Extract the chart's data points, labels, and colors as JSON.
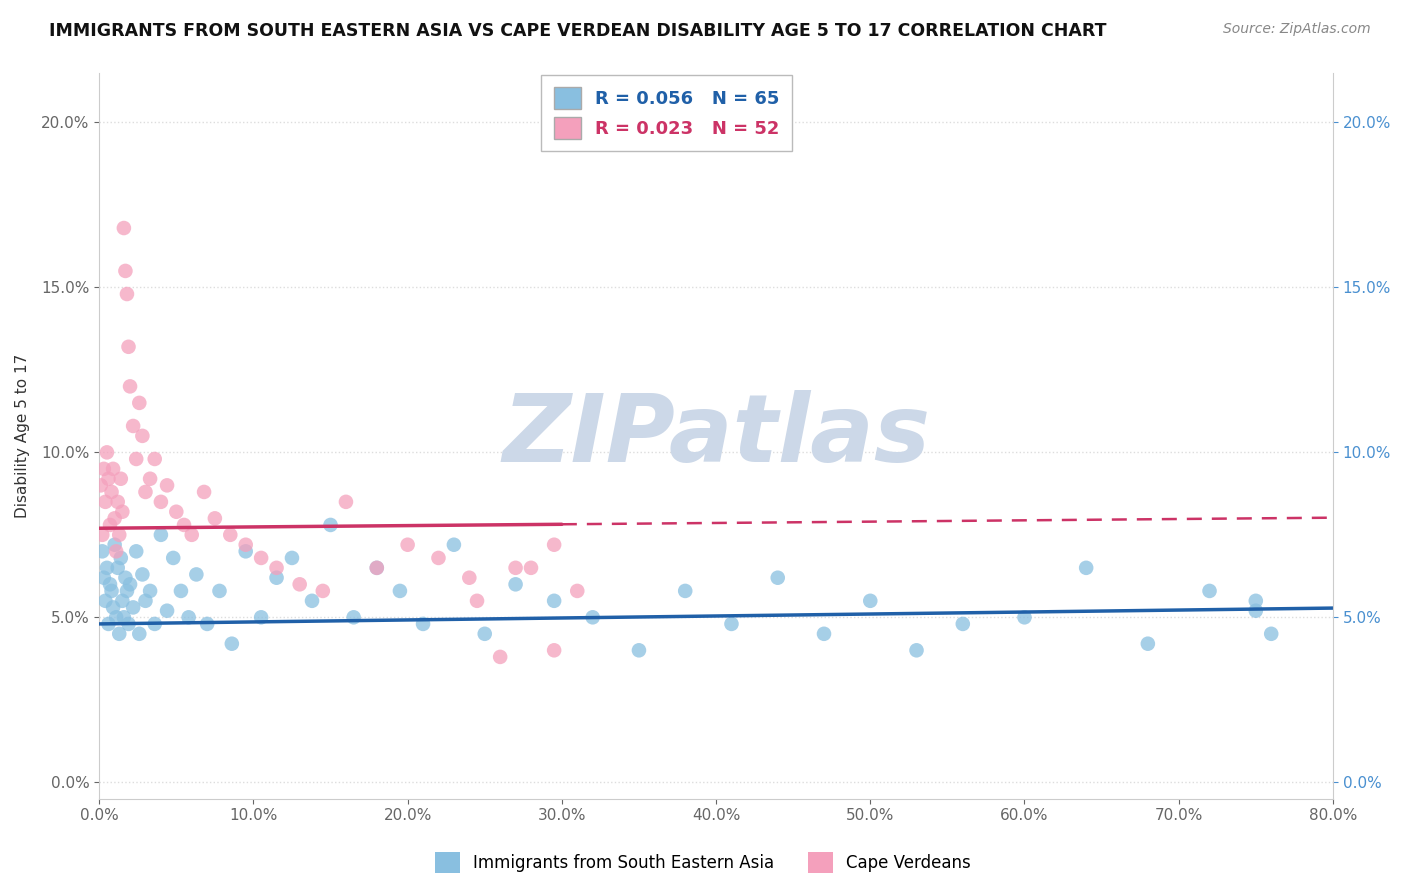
{
  "title": "IMMIGRANTS FROM SOUTH EASTERN ASIA VS CAPE VERDEAN DISABILITY AGE 5 TO 17 CORRELATION CHART",
  "source": "Source: ZipAtlas.com",
  "ylabel": "Disability Age 5 to 17",
  "xlim": [
    0.0,
    0.8
  ],
  "ylim": [
    -0.005,
    0.215
  ],
  "xticks": [
    0.0,
    0.1,
    0.2,
    0.3,
    0.4,
    0.5,
    0.6,
    0.7,
    0.8
  ],
  "yticks": [
    0.0,
    0.05,
    0.1,
    0.15,
    0.2
  ],
  "blue_R": 0.056,
  "blue_N": 65,
  "pink_R": 0.023,
  "pink_N": 52,
  "blue_color": "#89bfe0",
  "pink_color": "#f4a0bc",
  "blue_line_color": "#2060a8",
  "pink_line_color": "#cc3366",
  "legend_label_blue": "Immigrants from South Eastern Asia",
  "legend_label_pink": "Cape Verdeans",
  "blue_x": [
    0.002,
    0.003,
    0.004,
    0.005,
    0.006,
    0.007,
    0.008,
    0.009,
    0.01,
    0.011,
    0.012,
    0.013,
    0.014,
    0.015,
    0.016,
    0.017,
    0.018,
    0.019,
    0.02,
    0.022,
    0.024,
    0.026,
    0.028,
    0.03,
    0.033,
    0.036,
    0.04,
    0.044,
    0.048,
    0.053,
    0.058,
    0.063,
    0.07,
    0.078,
    0.086,
    0.095,
    0.105,
    0.115,
    0.125,
    0.138,
    0.15,
    0.165,
    0.18,
    0.195,
    0.21,
    0.23,
    0.25,
    0.27,
    0.295,
    0.32,
    0.35,
    0.38,
    0.41,
    0.44,
    0.47,
    0.5,
    0.53,
    0.56,
    0.6,
    0.64,
    0.68,
    0.72,
    0.75,
    0.76,
    0.75
  ],
  "blue_y": [
    0.07,
    0.062,
    0.055,
    0.065,
    0.048,
    0.06,
    0.058,
    0.053,
    0.072,
    0.05,
    0.065,
    0.045,
    0.068,
    0.055,
    0.05,
    0.062,
    0.058,
    0.048,
    0.06,
    0.053,
    0.07,
    0.045,
    0.063,
    0.055,
    0.058,
    0.048,
    0.075,
    0.052,
    0.068,
    0.058,
    0.05,
    0.063,
    0.048,
    0.058,
    0.042,
    0.07,
    0.05,
    0.062,
    0.068,
    0.055,
    0.078,
    0.05,
    0.065,
    0.058,
    0.048,
    0.072,
    0.045,
    0.06,
    0.055,
    0.05,
    0.04,
    0.058,
    0.048,
    0.062,
    0.045,
    0.055,
    0.04,
    0.048,
    0.05,
    0.065,
    0.042,
    0.058,
    0.052,
    0.045,
    0.055
  ],
  "pink_x": [
    0.001,
    0.002,
    0.003,
    0.004,
    0.005,
    0.006,
    0.007,
    0.008,
    0.009,
    0.01,
    0.011,
    0.012,
    0.013,
    0.014,
    0.015,
    0.016,
    0.017,
    0.018,
    0.019,
    0.02,
    0.022,
    0.024,
    0.026,
    0.028,
    0.03,
    0.033,
    0.036,
    0.04,
    0.044,
    0.05,
    0.055,
    0.06,
    0.068,
    0.075,
    0.085,
    0.095,
    0.105,
    0.115,
    0.13,
    0.145,
    0.16,
    0.18,
    0.2,
    0.22,
    0.245,
    0.27,
    0.295,
    0.31,
    0.295,
    0.28,
    0.26,
    0.24
  ],
  "pink_y": [
    0.09,
    0.075,
    0.095,
    0.085,
    0.1,
    0.092,
    0.078,
    0.088,
    0.095,
    0.08,
    0.07,
    0.085,
    0.075,
    0.092,
    0.082,
    0.168,
    0.155,
    0.148,
    0.132,
    0.12,
    0.108,
    0.098,
    0.115,
    0.105,
    0.088,
    0.092,
    0.098,
    0.085,
    0.09,
    0.082,
    0.078,
    0.075,
    0.088,
    0.08,
    0.075,
    0.072,
    0.068,
    0.065,
    0.06,
    0.058,
    0.085,
    0.065,
    0.072,
    0.068,
    0.055,
    0.065,
    0.04,
    0.058,
    0.072,
    0.065,
    0.038,
    0.062
  ],
  "watermark_text": "ZIPatlas",
  "watermark_color": "#ccd8e8",
  "bg_color": "#ffffff",
  "grid_color": "#dddddd",
  "spine_color": "#cccccc",
  "tick_color": "#666666",
  "title_color": "#111111",
  "source_color": "#888888",
  "ylabel_color": "#333333"
}
